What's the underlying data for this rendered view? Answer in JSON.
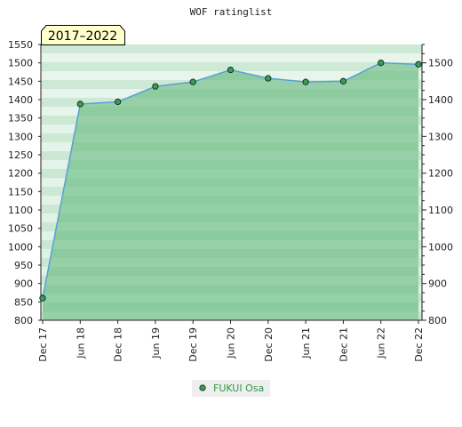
{
  "chart_data": {
    "type": "area",
    "title": "WOF ratinglist",
    "period_label": "2017–2022",
    "categories": [
      "Dec 17",
      "Jun 18",
      "Dec 18",
      "Jun 19",
      "Dec 19",
      "Jun 20",
      "Dec 20",
      "Jun 21",
      "Dec 21",
      "Jun 22",
      "Dec 22"
    ],
    "series": [
      {
        "name": "FUKUI Osa",
        "values": [
          860,
          1388,
          1394,
          1436,
          1448,
          1481,
          1458,
          1448,
          1450,
          1500,
          1496
        ]
      }
    ],
    "y_ticks_left": [
      "1550",
      "1500",
      "1450",
      "1400",
      "1350",
      "1300",
      "1250",
      "1200",
      "1150",
      "1100",
      "1050",
      "1000",
      "950",
      "900",
      "850",
      "800"
    ],
    "y_ticks_right": [
      "1500",
      "1400",
      "1300",
      "1200",
      "1100",
      "1000",
      "900",
      "800"
    ],
    "ylim": [
      800,
      1550
    ],
    "legend_position": "bottom-center",
    "colors": {
      "area_fill": "#7cc492",
      "line": "#5b9fd6",
      "marker_fill": "#3f9a5a",
      "marker_stroke": "#0a2a14",
      "period_box_fill": "#ffffcc",
      "legend_bg": "#eeeeee",
      "legend_text": "#2e9a45"
    }
  }
}
